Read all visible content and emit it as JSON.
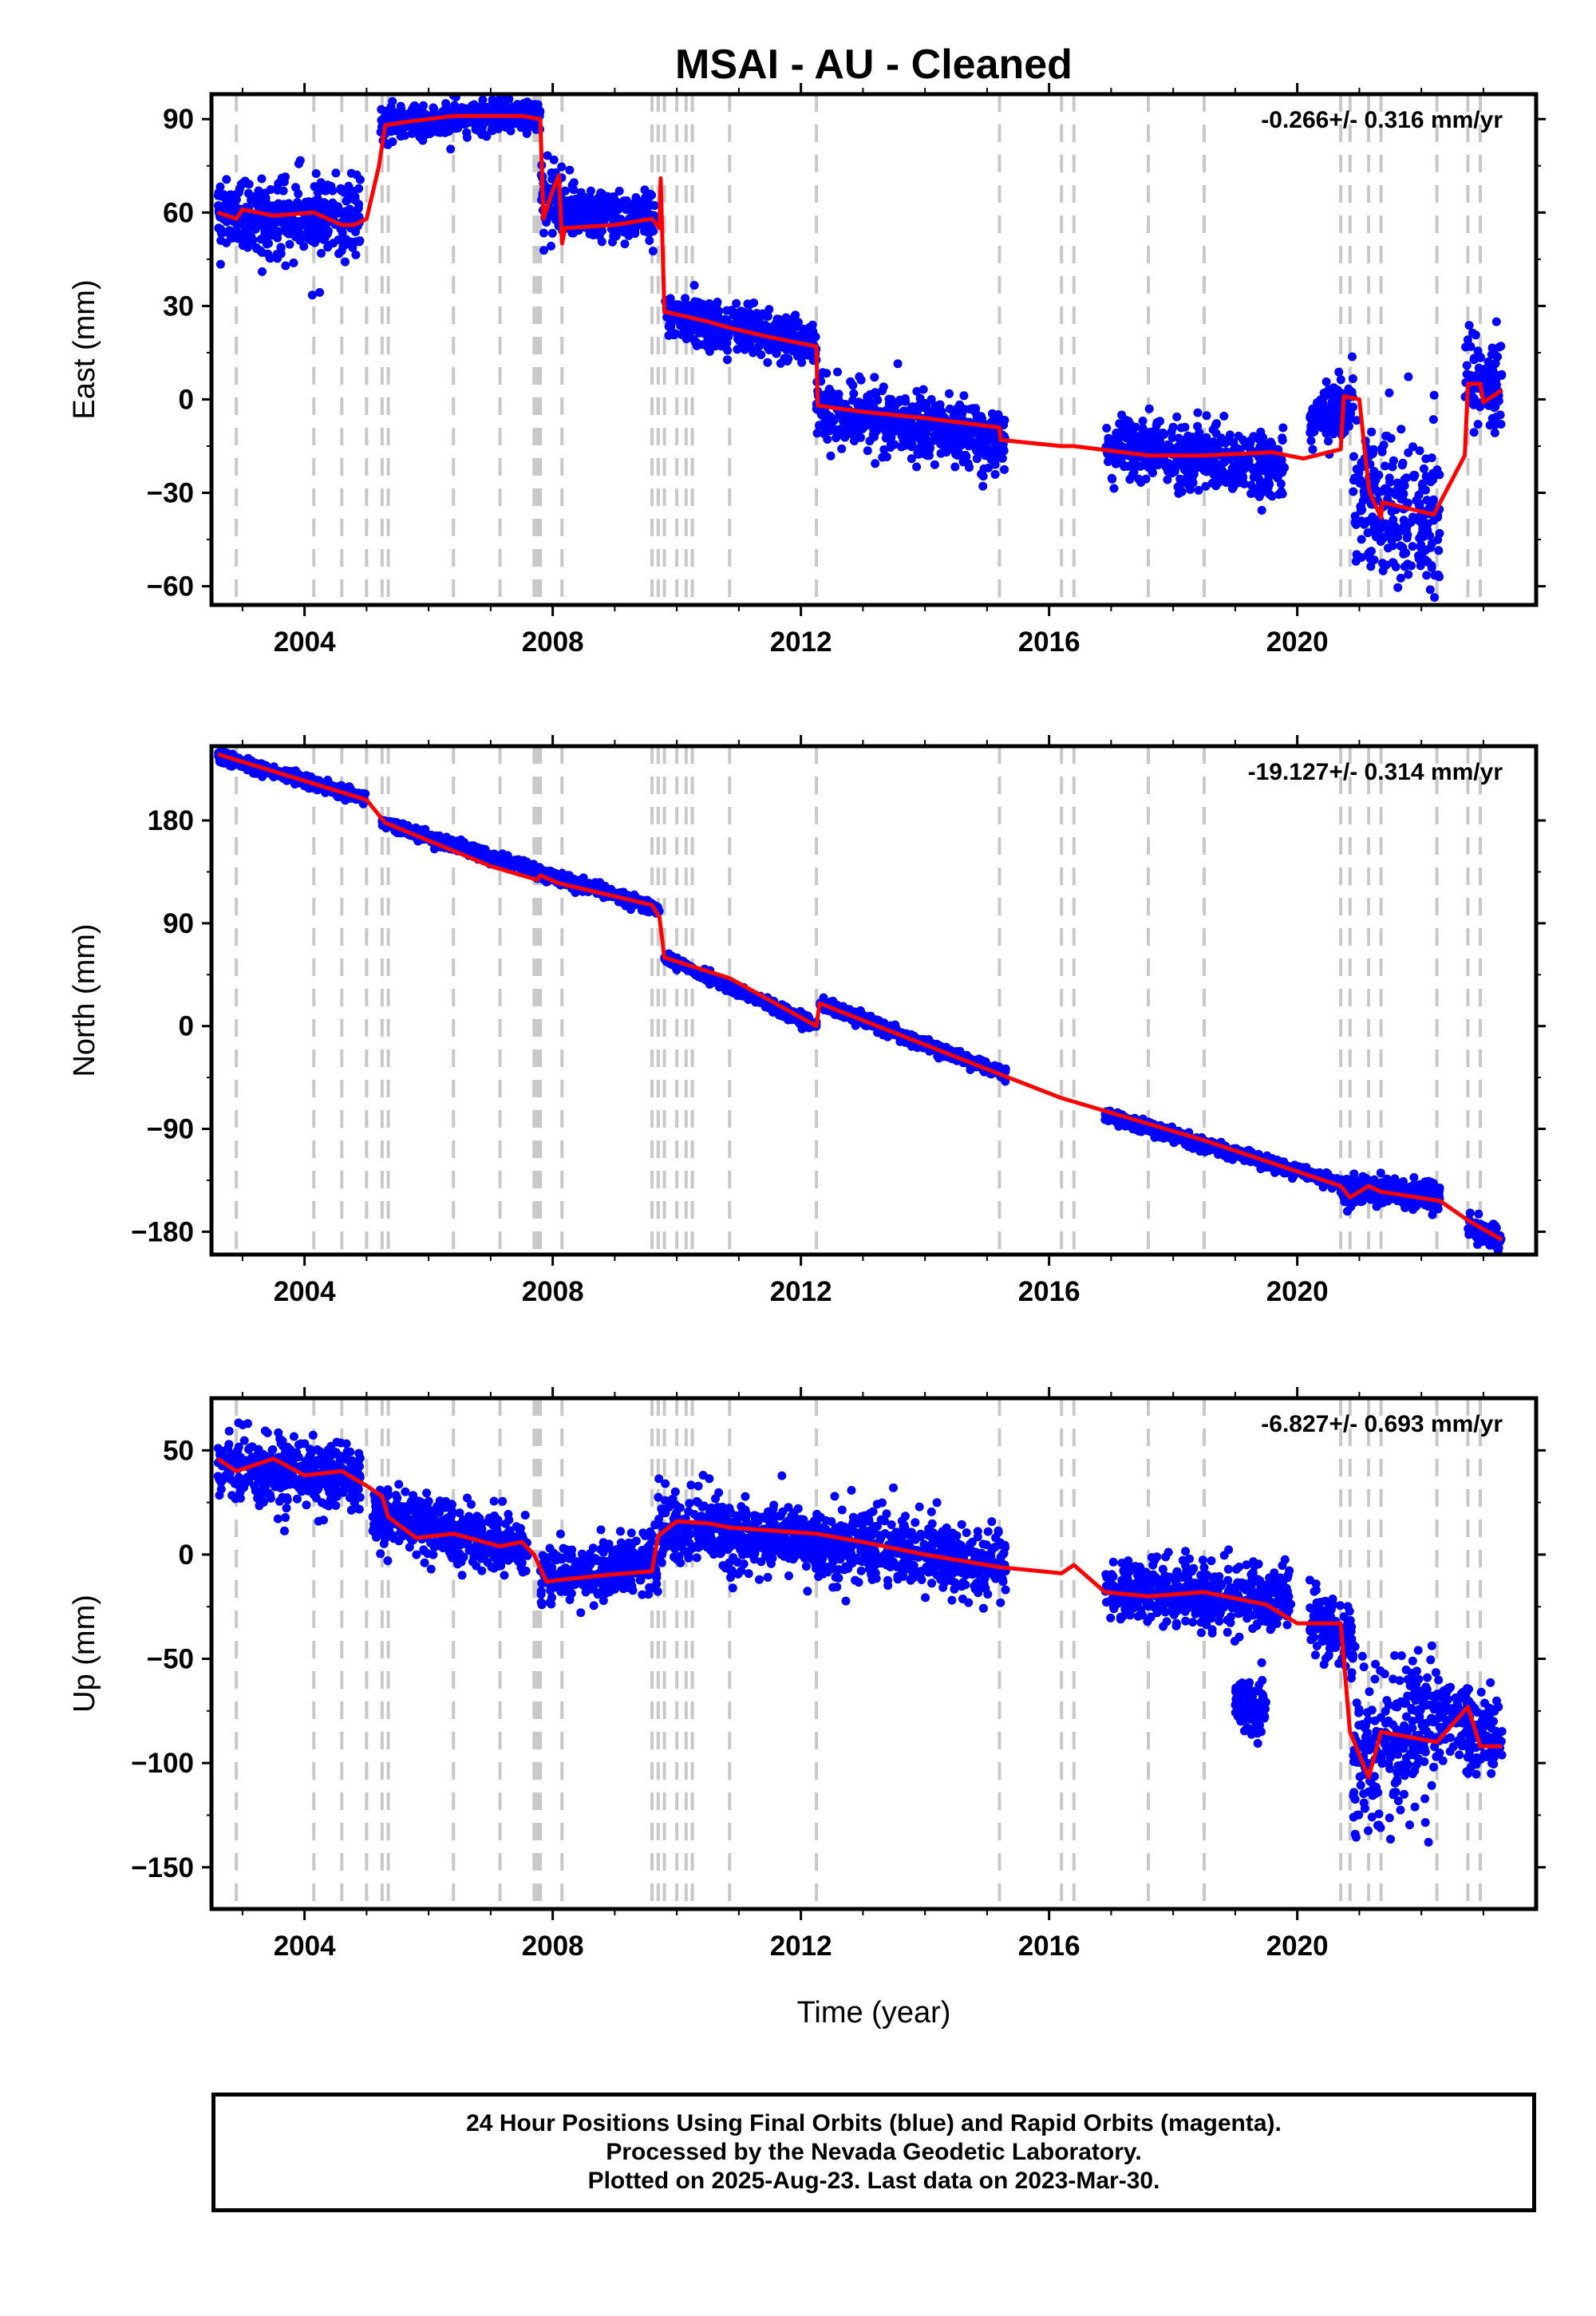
{
  "chart_data": {
    "title": "MSAI  - AU - Cleaned",
    "xlabel": "Time (year)",
    "xlim": [
      2002.5,
      2023.85
    ],
    "xticks": [
      "2004",
      "2008",
      "2012",
      "2016",
      "2020"
    ],
    "colors": {
      "data": "#0000ff",
      "model": "#ff0000",
      "event_lines": "#c8c8c8"
    },
    "event_lines": [
      2002.9,
      2004.15,
      2004.6,
      2005.0,
      2005.25,
      2005.35,
      2006.4,
      2007.15,
      2007.7,
      2007.75,
      2007.8,
      2008.15,
      2009.6,
      2009.7,
      2009.8,
      2010.0,
      2010.15,
      2010.25,
      2010.85,
      2012.25,
      2015.2,
      2016.2,
      2016.4,
      2017.6,
      2018.5,
      2020.7,
      2020.85,
      2021.15,
      2021.35,
      2022.25,
      2022.75,
      2022.95
    ],
    "panels": [
      {
        "type": "scatter",
        "component": "East",
        "ylabel": "East (mm)",
        "ylim": [
          -66,
          98
        ],
        "yticks": [
          90,
          60,
          30,
          0,
          -30,
          -60
        ],
        "rate_label": "-0.266+/- 0.316 mm/yr",
        "grid": false,
        "model": {
          "x": [
            2002.6,
            2002.9,
            2003.0,
            2003.5,
            2004.15,
            2004.6,
            2004.8,
            2005.0,
            2005.2,
            2005.3,
            2005.6,
            2006.4,
            2007.0,
            2007.5,
            2007.8,
            2007.85,
            2008.0,
            2008.1,
            2008.15,
            2008.2,
            2009.0,
            2009.6,
            2009.72,
            2009.74,
            2009.8,
            2009.85,
            2010.5,
            2010.85,
            2011.5,
            2012.25,
            2012.27,
            2013.0,
            2014.0,
            2015.2,
            2015.22,
            2016.2,
            2016.4,
            2017.6,
            2018.5,
            2019.6,
            2020.1,
            2020.7,
            2020.75,
            2021.0,
            2021.15,
            2021.17,
            2021.35,
            2021.37,
            2022.2,
            2022.7,
            2022.75,
            2022.95,
            2023.0,
            2023.3
          ],
          "y": [
            60,
            58,
            61,
            59,
            60,
            56,
            56,
            58,
            75,
            88,
            89,
            91,
            91,
            91,
            90,
            58,
            67,
            72,
            50,
            55,
            56,
            58,
            55,
            71,
            28,
            28,
            25,
            23,
            20,
            17,
            -2,
            -4,
            -6,
            -9,
            -13,
            -15,
            -15,
            -18,
            -18,
            -17,
            -19,
            -16,
            1,
            0,
            -28,
            -30,
            -38,
            -33,
            -37,
            -18,
            5,
            5,
            -1,
            3
          ]
        },
        "clusters": [
          {
            "x0": 2002.6,
            "x1": 2004.9,
            "c0": 60,
            "c1": 58,
            "s": 6
          },
          {
            "x0": 2005.2,
            "x1": 2005.6,
            "c0": 87,
            "c1": 90,
            "s": 3
          },
          {
            "x0": 2005.6,
            "x1": 2007.8,
            "c0": 89,
            "c1": 92,
            "s": 2.5
          },
          {
            "x0": 2007.8,
            "x1": 2008.2,
            "c0": 63,
            "c1": 62,
            "s": 5
          },
          {
            "x0": 2008.2,
            "x1": 2009.7,
            "c0": 60,
            "c1": 58,
            "s": 4
          },
          {
            "x0": 2009.8,
            "x1": 2012.25,
            "c0": 27,
            "c1": 19,
            "s": 3.5
          },
          {
            "x0": 2012.25,
            "x1": 2015.3,
            "c0": -3,
            "c1": -13,
            "s": 5
          },
          {
            "x0": 2016.9,
            "x1": 2019.8,
            "c0": -15,
            "c1": -22,
            "s": 5
          },
          {
            "x0": 2020.2,
            "x1": 2020.9,
            "c0": -8,
            "c1": 0,
            "s": 5
          },
          {
            "x0": 2020.9,
            "x1": 2022.3,
            "c0": -33,
            "c1": -38,
            "s": 12
          },
          {
            "x0": 2022.7,
            "x1": 2023.3,
            "c0": 6,
            "c1": 2,
            "s": 8
          }
        ]
      },
      {
        "type": "scatter",
        "component": "North",
        "ylabel": "North (mm)",
        "ylim": [
          -200,
          245
        ],
        "yticks": [
          180,
          90,
          0,
          -90,
          -180
        ],
        "rate_label": "-19.127+/- 0.314 mm/yr",
        "grid": false,
        "model": {
          "x": [
            2002.6,
            2005.0,
            2005.3,
            2007.0,
            2007.75,
            2007.8,
            2008.1,
            2009.6,
            2009.72,
            2009.8,
            2010.85,
            2012.25,
            2012.3,
            2015.2,
            2016.2,
            2018.5,
            2020.7,
            2020.85,
            2021.15,
            2021.35,
            2022.3,
            2022.75,
            2023.3
          ],
          "y": [
            238,
            198,
            178,
            140,
            128,
            132,
            125,
            106,
            95,
            60,
            42,
            0,
            20,
            -42,
            -63,
            -100,
            -140,
            -150,
            -140,
            -145,
            -153,
            -170,
            -187
          ]
        },
        "clusters": [
          {
            "x0": 2002.6,
            "x1": 2005.0,
            "c0": 236,
            "c1": 200,
            "s": 2.5
          },
          {
            "x0": 2005.25,
            "x1": 2009.72,
            "c0": 178,
            "c1": 102,
            "s": 2.5
          },
          {
            "x0": 2009.8,
            "x1": 2012.25,
            "c0": 60,
            "c1": 0,
            "s": 2.5
          },
          {
            "x0": 2012.3,
            "x1": 2015.3,
            "c0": 20,
            "c1": -43,
            "s": 2.5
          },
          {
            "x0": 2016.9,
            "x1": 2020.7,
            "c0": -78,
            "c1": -138,
            "s": 2.5
          },
          {
            "x0": 2020.7,
            "x1": 2022.3,
            "c0": -143,
            "c1": -148,
            "s": 6
          },
          {
            "x0": 2022.75,
            "x1": 2023.3,
            "c0": -175,
            "c1": -186,
            "s": 5
          }
        ]
      },
      {
        "type": "scatter",
        "component": "Up",
        "ylabel": "Up (mm)",
        "ylim": [
          -170,
          75
        ],
        "yticks": [
          50,
          0,
          -50,
          -100,
          -150
        ],
        "rate_label": "-6.827+/- 0.693 mm/yr",
        "grid": false,
        "model": {
          "x": [
            2002.6,
            2002.9,
            2003.5,
            2004.0,
            2004.6,
            2005.0,
            2005.25,
            2005.35,
            2005.8,
            2006.4,
            2007.15,
            2007.5,
            2007.7,
            2007.9,
            2008.15,
            2008.8,
            2009.6,
            2009.7,
            2010.0,
            2010.5,
            2010.85,
            2012.25,
            2013.0,
            2014.0,
            2015.2,
            2016.2,
            2016.4,
            2016.9,
            2017.6,
            2018.5,
            2019.5,
            2020.0,
            2020.7,
            2020.85,
            2021.15,
            2021.35,
            2022.25,
            2022.75,
            2022.95,
            2023.3
          ],
          "y": [
            46,
            40,
            46,
            38,
            40,
            33,
            28,
            18,
            8,
            10,
            4,
            6,
            0,
            -13,
            -12,
            -10,
            -8,
            9,
            16,
            15,
            13,
            10,
            6,
            0,
            -6,
            -9,
            -5,
            -18,
            -20,
            -18,
            -24,
            -33,
            -33,
            -85,
            -107,
            -85,
            -90,
            -73,
            -92,
            -92
          ]
        },
        "clusters": [
          {
            "x0": 2002.6,
            "x1": 2004.9,
            "c0": 42,
            "c1": 37,
            "s": 8
          },
          {
            "x0": 2005.1,
            "x1": 2007.6,
            "c0": 20,
            "c1": 2,
            "s": 7
          },
          {
            "x0": 2007.8,
            "x1": 2009.7,
            "c0": -10,
            "c1": -5,
            "s": 7
          },
          {
            "x0": 2009.7,
            "x1": 2015.3,
            "c0": 14,
            "c1": -4,
            "s": 8
          },
          {
            "x0": 2016.9,
            "x1": 2019.9,
            "c0": -17,
            "c1": -22,
            "s": 7
          },
          {
            "x0": 2019.0,
            "x1": 2019.5,
            "c0": -70,
            "c1": -75,
            "s": 8
          },
          {
            "x0": 2020.2,
            "x1": 2020.9,
            "c0": -28,
            "c1": -42,
            "s": 8
          },
          {
            "x0": 2020.9,
            "x1": 2022.3,
            "c0": -95,
            "c1": -80,
            "s": 18
          },
          {
            "x0": 2022.3,
            "x1": 2023.3,
            "c0": -75,
            "c1": -90,
            "s": 10
          }
        ]
      }
    ]
  },
  "footer": {
    "line1": "24 Hour Positions Using Final Orbits (blue) and Rapid Orbits (magenta).",
    "line2": "Processed by the Nevada Geodetic Laboratory.",
    "line3": "Plotted on 2025-Aug-23. Last data on 2023-Mar-30."
  }
}
